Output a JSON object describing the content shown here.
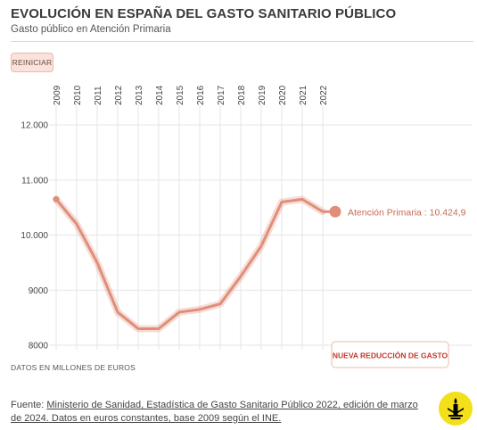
{
  "header": {
    "title": "EVOLUCIÓN EN ESPAÑA DEL GASTO SANITARIO PÚBLICO",
    "subtitle": "Gasto público en Atención Primaria"
  },
  "controls": {
    "reset_label": "REINICIAR"
  },
  "chart_data": {
    "type": "line",
    "x": [
      "2009",
      "2010",
      "2011",
      "2012",
      "2013",
      "2014",
      "2015",
      "2016",
      "2017",
      "2018",
      "2019",
      "2020",
      "2021",
      "2022"
    ],
    "series": [
      {
        "name": "Atención Primaria",
        "values": [
          10650,
          10200,
          9500,
          8600,
          8300,
          8300,
          8600,
          8650,
          8750,
          9250,
          9800,
          10600,
          10650,
          10424.9
        ],
        "color": "#e08e7a"
      }
    ],
    "end_label": "Atención Primaria : 10.424,9",
    "yticks": [
      "8000",
      "9000",
      "10.000",
      "11.000",
      "12.000"
    ],
    "ytick_values": [
      8000,
      9000,
      10000,
      11000,
      12000
    ],
    "ylim": [
      8000,
      12000
    ],
    "grid": true,
    "annotation": "NUEVA REDUCCIÓN DE GASTO",
    "units_note": "DATOS EN MILLONES DE EUROS"
  },
  "footer": {
    "source_prefix": "Fuente: ",
    "source_link": "Ministerio de Sanidad, Estadística de Gasto Sanitario Público 2022, edición de marzo de 2024. Datos en euros constantes, base 2009 según el INE."
  },
  "logo": {
    "icon": "amnesty-candle-icon",
    "color": "#f4df1b"
  }
}
